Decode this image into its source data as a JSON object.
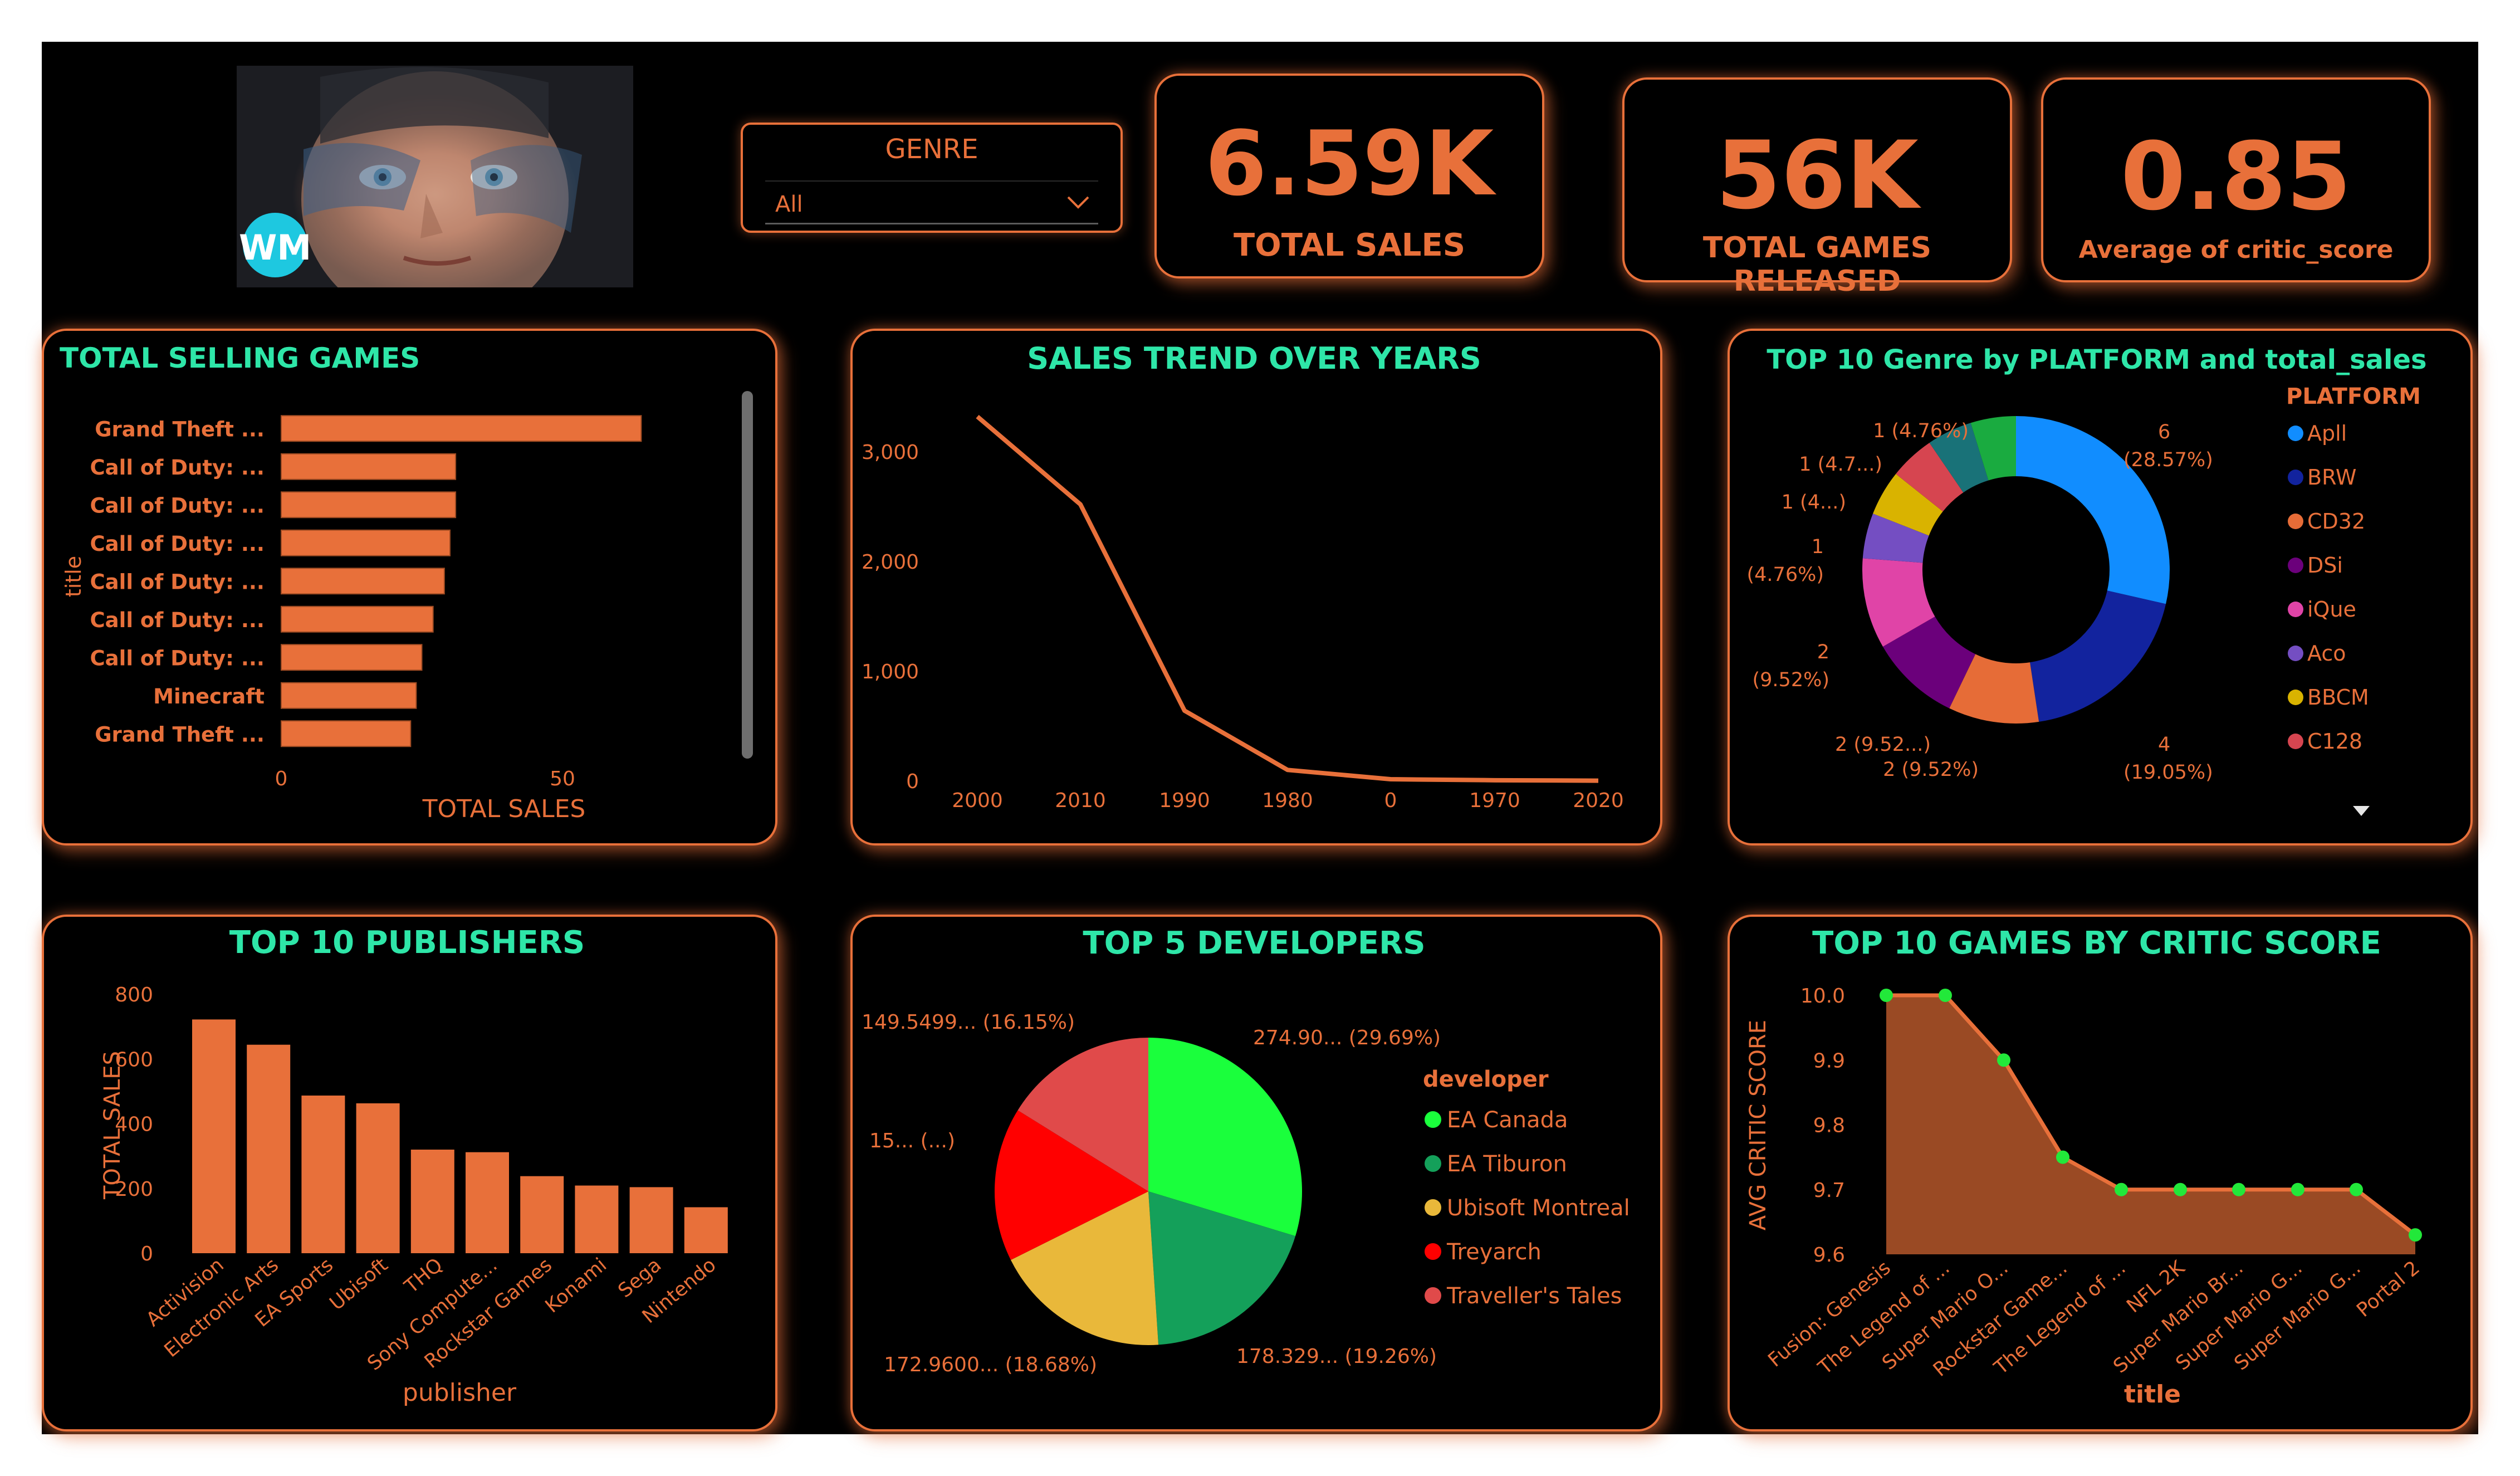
{
  "logo": {
    "text": "WM"
  },
  "slicer": {
    "label": "GENRE",
    "value": "All"
  },
  "kpis": [
    {
      "value": "6.59K",
      "label": "TOTAL SALES"
    },
    {
      "value": "56K",
      "label": "TOTAL GAMES RELEASED"
    },
    {
      "value": "0.85",
      "label": "Average of critic_score"
    }
  ],
  "colors": {
    "accent": "#e8703a",
    "title": "#2ee6a8",
    "background": "#000000"
  },
  "chart_data": [
    {
      "id": "total_selling_games",
      "type": "bar",
      "orientation": "horizontal",
      "title": "TOTAL SELLING GAMES",
      "xlabel": "TOTAL SALES",
      "ylabel": "title",
      "categories": [
        "Grand Theft ...",
        "Call of Duty: ...",
        "Call of Duty: ...",
        "Call of Duty: ...",
        "Call of Duty: ...",
        "Call of Duty: ...",
        "Call of Duty: ...",
        "Minecraft",
        "Grand Theft ..."
      ],
      "values": [
        64,
        31,
        31,
        30,
        29,
        27,
        25,
        24,
        23
      ],
      "xticks": [
        "0",
        "50"
      ],
      "xlim": [
        0,
        70
      ]
    },
    {
      "id": "sales_trend",
      "type": "line",
      "title": "SALES TREND OVER YEARS",
      "categories": [
        "2000",
        "2010",
        "1990",
        "1980",
        "0",
        "1970",
        "2020"
      ],
      "values": [
        3320,
        2520,
        640,
        100,
        15,
        6,
        2
      ],
      "yticks": [
        "0",
        "1,000",
        "2,000",
        "3,000"
      ],
      "ylim": [
        0,
        3500
      ]
    },
    {
      "id": "genre_platform",
      "type": "pie",
      "title": "TOP 10 Genre by PLATFORM and total_sales",
      "legend_title": "PLATFORM",
      "legend": [
        "Apll",
        "BRW",
        "CD32",
        "DSi",
        "iQue",
        "Aco",
        "BBCM",
        "C128"
      ],
      "slices": [
        {
          "value": 6,
          "color": "#118dff"
        },
        {
          "value": 4,
          "color": "#12239e"
        },
        {
          "value": 2,
          "color": "#e66c37"
        },
        {
          "value": 2,
          "color": "#6b007b"
        },
        {
          "value": 2,
          "color": "#e044a7"
        },
        {
          "value": 1,
          "color": "#744ec2"
        },
        {
          "value": 1,
          "color": "#d9b300"
        },
        {
          "value": 1,
          "color": "#d64550"
        },
        {
          "value": 1,
          "color": "#197278"
        },
        {
          "value": 1,
          "color": "#1aab40"
        }
      ],
      "labels": [
        "6",
        "(28.57%)",
        "4",
        "(19.05%)",
        "2 (9.52%)",
        "2 (9.52...)",
        "2",
        "(9.52%)",
        "1",
        "(4.76%)",
        "1 (4...)",
        "1 (4.7...)",
        "1 (4.76%)"
      ]
    },
    {
      "id": "top_publishers",
      "type": "bar",
      "title": "TOP 10 PUBLISHERS",
      "xlabel": "publisher",
      "ylabel": "TOTAL SALES",
      "categories": [
        "Activision",
        "Electronic Arts",
        "EA Sports",
        "Ubisoft",
        "THQ",
        "Sony Compute...",
        "Rockstar Games",
        "Konami",
        "Sega",
        "Nintendo"
      ],
      "values": [
        722,
        644,
        487,
        463,
        320,
        312,
        238,
        209,
        204,
        142
      ],
      "yticks": [
        "0",
        "200",
        "400",
        "600",
        "800"
      ],
      "ylim": [
        0,
        800
      ]
    },
    {
      "id": "top_developers",
      "type": "pie",
      "title": "TOP 5 DEVELOPERS",
      "legend_title": "developer",
      "slices": [
        {
          "name": "EA Canada",
          "value": 274.9,
          "color": "#1aff3c"
        },
        {
          "name": "EA Tiburon",
          "value": 178.329,
          "color": "#14a05a"
        },
        {
          "name": "Ubisoft Montreal",
          "value": 172.96,
          "color": "#e9b83a"
        },
        {
          "name": "Treyarch",
          "value": 150.0,
          "color": "#ff0000"
        },
        {
          "name": "Traveller's Tales",
          "value": 149.5499,
          "color": "#e04a4a"
        }
      ],
      "labels": [
        "274.90... (29.69%)",
        "178.329... (19.26%)",
        "172.9600... (18.68%)",
        "15... (...)",
        "149.5499... (16.15%)"
      ]
    },
    {
      "id": "top_critic",
      "type": "area",
      "title": "TOP 10 GAMES BY CRITIC SCORE",
      "xlabel": "title",
      "ylabel": "AVG CRITIC SCORE",
      "categories": [
        "Fusion: Genesis",
        "The Legend of ...",
        "Super Mario O...",
        "Rockstar Game...",
        "The Legend of ...",
        "NFL 2K",
        "Super Mario Br...",
        "Super Mario G...",
        "Super Mario G...",
        "Portal 2"
      ],
      "values": [
        10.0,
        10.0,
        9.9,
        9.75,
        9.7,
        9.7,
        9.7,
        9.7,
        9.7,
        9.63
      ],
      "yticks": [
        "9.6",
        "9.7",
        "9.8",
        "9.9",
        "10.0"
      ],
      "ylim": [
        9.6,
        10.0
      ]
    }
  ]
}
